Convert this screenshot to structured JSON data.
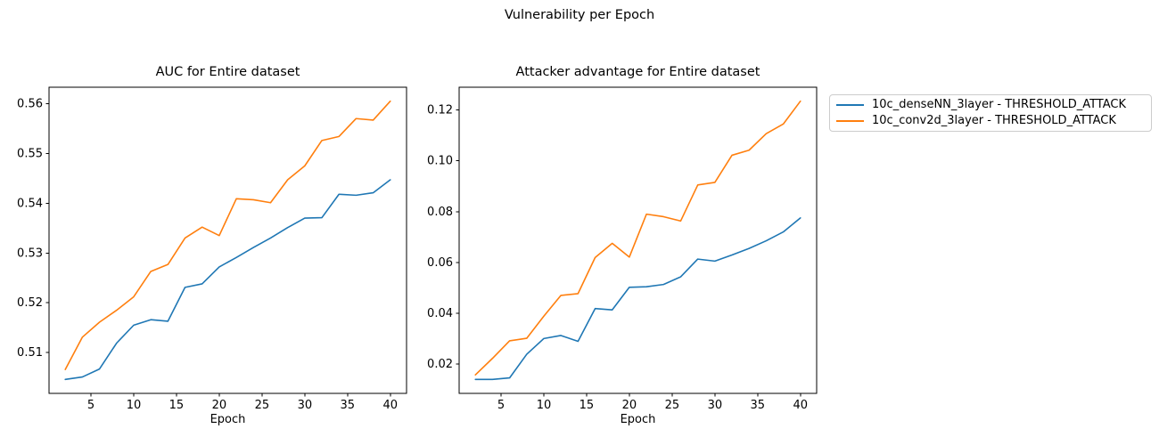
{
  "figure": {
    "title": "Vulnerability per Epoch",
    "background_color": "#ffffff",
    "text_color": "#000000"
  },
  "legend": {
    "location": "upper right, outside axes",
    "entries": [
      {
        "label": "10c_denseNN_3layer - THRESHOLD_ATTACK",
        "color": "#1f77b4"
      },
      {
        "label": "10c_conv2d_3layer - THRESHOLD_ATTACK",
        "color": "#ff7f0e"
      }
    ]
  },
  "chart_data": [
    {
      "type": "line",
      "title": "AUC for Entire dataset",
      "xlabel": "Epoch",
      "ylabel": "",
      "grid": false,
      "x": [
        2,
        4,
        6,
        8,
        10,
        12,
        14,
        16,
        18,
        20,
        22,
        24,
        26,
        28,
        30,
        32,
        34,
        36,
        38,
        40
      ],
      "series": [
        {
          "name": "10c_denseNN_3layer - THRESHOLD_ATTACK",
          "color": "#1f77b4",
          "values": [
            0.5046,
            0.5051,
            0.5067,
            0.5119,
            0.5155,
            0.5166,
            0.5163,
            0.5231,
            0.5238,
            0.5272,
            0.5291,
            0.5311,
            0.533,
            0.5351,
            0.537,
            0.5371,
            0.5418,
            0.5416,
            0.5421,
            0.5447
          ]
        },
        {
          "name": "10c_conv2d_3layer - THRESHOLD_ATTACK",
          "color": "#ff7f0e",
          "values": [
            0.5066,
            0.5131,
            0.5161,
            0.5185,
            0.5212,
            0.5263,
            0.5277,
            0.533,
            0.5352,
            0.5335,
            0.5409,
            0.5407,
            0.5401,
            0.5447,
            0.5475,
            0.5526,
            0.5534,
            0.557,
            0.5567,
            0.5605
          ]
        }
      ],
      "xlim": [
        0.1,
        41.9
      ],
      "ylim": [
        0.5018,
        0.5633
      ],
      "xticks": [
        5,
        10,
        15,
        20,
        25,
        30,
        35,
        40
      ],
      "yticks": [
        0.51,
        0.52,
        0.53,
        0.54,
        0.55,
        0.56
      ],
      "ytick_decimals": 2
    },
    {
      "type": "line",
      "title": "Attacker advantage for Entire dataset",
      "xlabel": "Epoch",
      "ylabel": "",
      "grid": false,
      "x": [
        2,
        4,
        6,
        8,
        10,
        12,
        14,
        16,
        18,
        20,
        22,
        24,
        26,
        28,
        30,
        32,
        34,
        36,
        38,
        40
      ],
      "series": [
        {
          "name": "10c_denseNN_3layer - THRESHOLD_ATTACK",
          "color": "#1f77b4",
          "values": [
            0.0139,
            0.0139,
            0.0145,
            0.0238,
            0.03,
            0.0312,
            0.0289,
            0.0418,
            0.0413,
            0.0502,
            0.0504,
            0.0513,
            0.0543,
            0.0613,
            0.0605,
            0.0629,
            0.0655,
            0.0685,
            0.072,
            0.0775
          ]
        },
        {
          "name": "10c_conv2d_3layer - THRESHOLD_ATTACK",
          "color": "#ff7f0e",
          "values": [
            0.0157,
            0.0222,
            0.0291,
            0.0301,
            0.0388,
            0.047,
            0.0477,
            0.0619,
            0.0675,
            0.0621,
            0.079,
            0.078,
            0.0763,
            0.0905,
            0.0915,
            0.1022,
            0.1042,
            0.1107,
            0.1145,
            0.1235
          ]
        }
      ],
      "xlim": [
        0.1,
        41.9
      ],
      "ylim": [
        0.0084,
        0.129
      ],
      "xticks": [
        5,
        10,
        15,
        20,
        25,
        30,
        35,
        40
      ],
      "yticks": [
        0.02,
        0.04,
        0.06,
        0.08,
        0.1,
        0.12
      ],
      "ytick_decimals": 2
    }
  ]
}
